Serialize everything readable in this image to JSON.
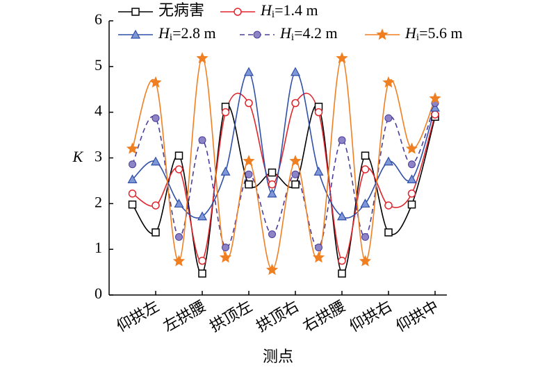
{
  "chart_data": {
    "type": "line",
    "xlabel": "测点",
    "ylabel": "K",
    "categories": [
      null,
      "仰拱左",
      null,
      "左拱腰",
      null,
      "拱顶左",
      null,
      "拱顶右",
      null,
      "右拱腰",
      null,
      "仰拱右",
      null,
      "仰拱中"
    ],
    "ylim": [
      0,
      6
    ],
    "yticks": [
      0,
      1,
      2,
      3,
      4,
      5,
      6
    ],
    "series": [
      {
        "name": "无病害",
        "color": "#000000",
        "marker": "square",
        "dash": false,
        "values": [
          1.98,
          1.37,
          3.05,
          0.47,
          4.12,
          2.42,
          2.68,
          2.42,
          4.12,
          0.47,
          3.05,
          1.37,
          1.98,
          3.9
        ]
      },
      {
        "name": "Hi=1.4 m",
        "color": "#e0242c",
        "marker": "circle",
        "dash": false,
        "values": [
          2.22,
          1.96,
          2.75,
          0.75,
          4.0,
          4.2,
          2.42,
          4.2,
          4.0,
          0.75,
          2.75,
          1.96,
          2.22,
          3.95
        ]
      },
      {
        "name": "Hi=2.8 m",
        "color": "#2f4fa8",
        "marker": "triangle",
        "dash": false,
        "values": [
          2.53,
          2.92,
          2.0,
          1.72,
          2.7,
          4.88,
          2.22,
          4.88,
          2.7,
          1.72,
          2.0,
          2.92,
          2.53,
          4.1
        ]
      },
      {
        "name": "Hi=4.2 m",
        "color": "#4a3d9c",
        "marker": "dot",
        "dash": true,
        "values": [
          2.86,
          3.87,
          1.27,
          3.39,
          1.04,
          2.64,
          1.33,
          2.64,
          1.04,
          3.39,
          1.27,
          3.87,
          2.86,
          4.2
        ]
      },
      {
        "name": "Hi=5.6 m",
        "color": "#f07f22",
        "marker": "star",
        "dash": false,
        "values": [
          3.2,
          4.65,
          0.74,
          5.18,
          0.82,
          2.93,
          0.55,
          2.93,
          0.82,
          5.18,
          0.74,
          4.65,
          3.2,
          4.3
        ]
      }
    ]
  }
}
